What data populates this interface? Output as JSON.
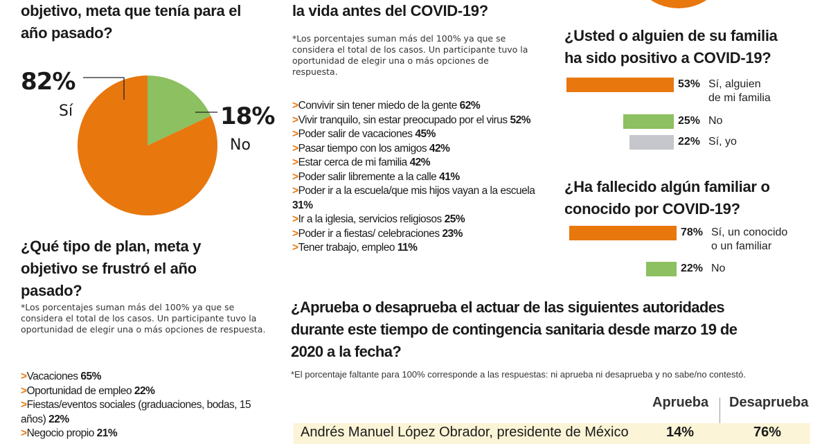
{
  "colors": {
    "orange": "#e8770e",
    "green": "#8dc060",
    "gray": "#c6c7cc",
    "row_bg": "#fbf4d6"
  },
  "q_goal": {
    "title_lines": [
      "objetivo, meta que tenía para el",
      "año pasado?"
    ]
  },
  "q_frustrated": {
    "title_lines": [
      "¿Qué tipo de plan, meta y",
      "objetivo se frustró el año",
      "pasado?"
    ],
    "note": "*Los porcentajes suman más del 100% ya que se considera el total de los casos.  Un participante tuvo la oportunidad de elegir una o más opciones de respuesta.",
    "items": [
      {
        "text": "Vacaciones",
        "pct": "65%"
      },
      {
        "text": "Oportunidad de empleo",
        "pct": "22%"
      },
      {
        "text": "Fiestas/eventos sociales (graduaciones, bodas, 15 años)",
        "pct": "22%"
      },
      {
        "text": "Negocio propio",
        "pct": "21%"
      }
    ]
  },
  "q_miss": {
    "title_lines": [
      "la vida antes del COVID-19?"
    ],
    "note": "*Los porcentajes suman más del 100% ya que se considera el total de los casos.  Un participante tuvo la oportunidad de elegir una o más opciones de respuesta.",
    "items": [
      {
        "text": "Convivir sin tener miedo de la gente",
        "pct": "62%"
      },
      {
        "text": "Vivir tranquilo, sin estar preocupado por el virus",
        "pct": "52%"
      },
      {
        "text": "Poder salir de vacaciones",
        "pct": "45%"
      },
      {
        "text": "Pasar tiempo con los amigos",
        "pct": "42%"
      },
      {
        "text": "Estar cerca de mi familia",
        "pct": "42%"
      },
      {
        "text": "Poder salir libremente a la calle",
        "pct": "41%"
      },
      {
        "text": "Poder ir a la escuela/que mis hijos vayan a la escuela",
        "pct": "31%"
      },
      {
        "text": "Ir a la iglesia, servicios religiosos",
        "pct": "25%"
      },
      {
        "text": "Poder ir a fiestas/ celebraciones",
        "pct": "23%"
      },
      {
        "text": "Tener trabajo, empleo",
        "pct": "11%"
      }
    ]
  },
  "q_approve": {
    "title_lines": [
      "¿Aprueba o desaprueba el actuar de las siguientes autoridades",
      "durante este tiempo de contingencia sanitaria desde marzo 19 de",
      "2020 a la fecha?"
    ],
    "note": "*El porcentaje faltante para 100% corresponde a las respuestas: ni aprueba ni desaprueba y no sabe/no contestó.",
    "headers": [
      "Aprueba",
      "Desaprueba"
    ],
    "rows": [
      {
        "name": "Andrés Manuel López Obrador, presidente de México",
        "aprueba": "14%",
        "desaprueba": "76%"
      }
    ]
  },
  "chart_data": [
    {
      "type": "pie",
      "slices": [
        {
          "label": "Sí",
          "value": 82,
          "display": "82%",
          "color": "#e8770e"
        },
        {
          "label": "No",
          "value": 18,
          "display": "18%",
          "color": "#8dc060"
        }
      ]
    },
    {
      "type": "bar",
      "title": "¿Usted o alguien de su familia ha sido positivo a COVID-19?",
      "title_lines": [
        "¿Usted o alguien de su familia",
        "ha sido positivo a COVID-19?"
      ],
      "categories": [
        [
          "Sí, alguien",
          "de mi familia"
        ],
        [
          "No"
        ],
        [
          "Sí, yo"
        ]
      ],
      "values": [
        53,
        25,
        22
      ],
      "display": [
        "53%",
        "25%",
        "22%"
      ],
      "colors": [
        "#e8770e",
        "#8dc060",
        "#c6c7cc"
      ]
    },
    {
      "type": "bar",
      "title": "¿Ha fallecido algún familiar o conocido por COVID-19?",
      "title_lines": [
        "¿Ha fallecido algún familiar o",
        "conocido por COVID-19?"
      ],
      "categories": [
        [
          "Sí, un conocido",
          "o un familiar"
        ],
        [
          "No"
        ]
      ],
      "values": [
        78,
        22
      ],
      "display": [
        "78%",
        "22%"
      ],
      "colors": [
        "#e8770e",
        "#8dc060"
      ]
    }
  ]
}
